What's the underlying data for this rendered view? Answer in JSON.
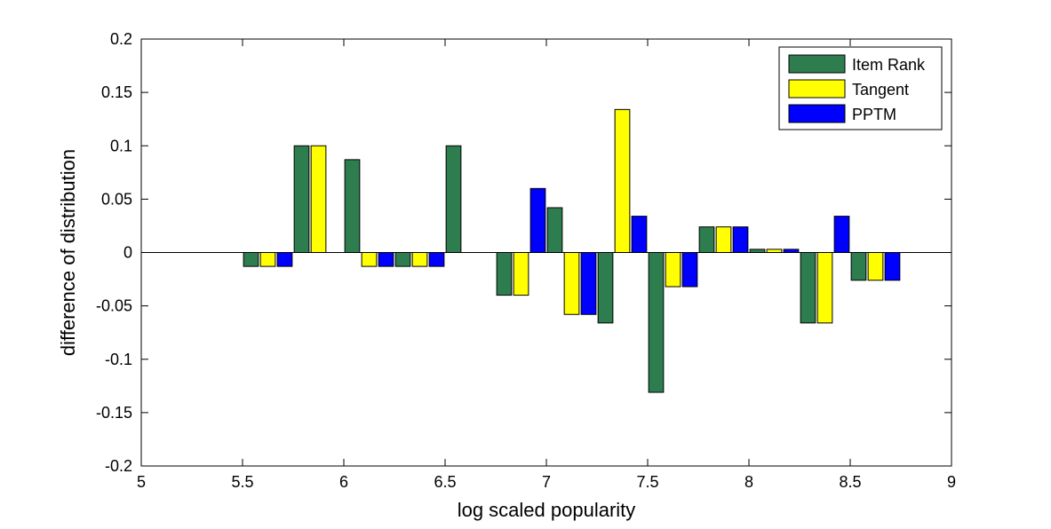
{
  "chart_data": {
    "type": "bar",
    "title": "",
    "xlabel": "log scaled popularity",
    "ylabel": "difference of distribution",
    "xlim": [
      5,
      9
    ],
    "ylim": [
      -0.2,
      0.2
    ],
    "x_ticks": [
      "5",
      "5.5",
      "6",
      "6.5",
      "7",
      "7.5",
      "8",
      "8.5",
      "9"
    ],
    "y_ticks": [
      "0.2",
      "0.15",
      "0.1",
      "0.05",
      "0",
      "-0.05",
      "-0.1",
      "-0.15",
      "-0.2"
    ],
    "x": [
      5.625,
      5.875,
      6.125,
      6.375,
      6.625,
      6.875,
      7.125,
      7.375,
      7.625,
      7.875,
      8.125,
      8.375,
      8.625
    ],
    "grid": false,
    "legend_position": "top-right",
    "series": [
      {
        "name": "Item Rank",
        "color": "#2e7d4f",
        "values": [
          -0.013,
          0.1,
          0.087,
          -0.013,
          0.1,
          -0.04,
          0.042,
          -0.066,
          -0.131,
          0.024,
          0.003,
          -0.066,
          -0.026
        ]
      },
      {
        "name": "Tangent",
        "color": "#ffff00",
        "values": [
          -0.013,
          0.1,
          -0.013,
          -0.013,
          0,
          -0.04,
          -0.058,
          0.134,
          -0.032,
          0.024,
          0.003,
          -0.066,
          -0.026
        ]
      },
      {
        "name": "PPTM",
        "color": "#0000ff",
        "values": [
          -0.013,
          0,
          -0.013,
          -0.013,
          0,
          0.06,
          -0.058,
          0.034,
          -0.032,
          0.024,
          0.003,
          0.034,
          -0.026
        ]
      }
    ]
  }
}
